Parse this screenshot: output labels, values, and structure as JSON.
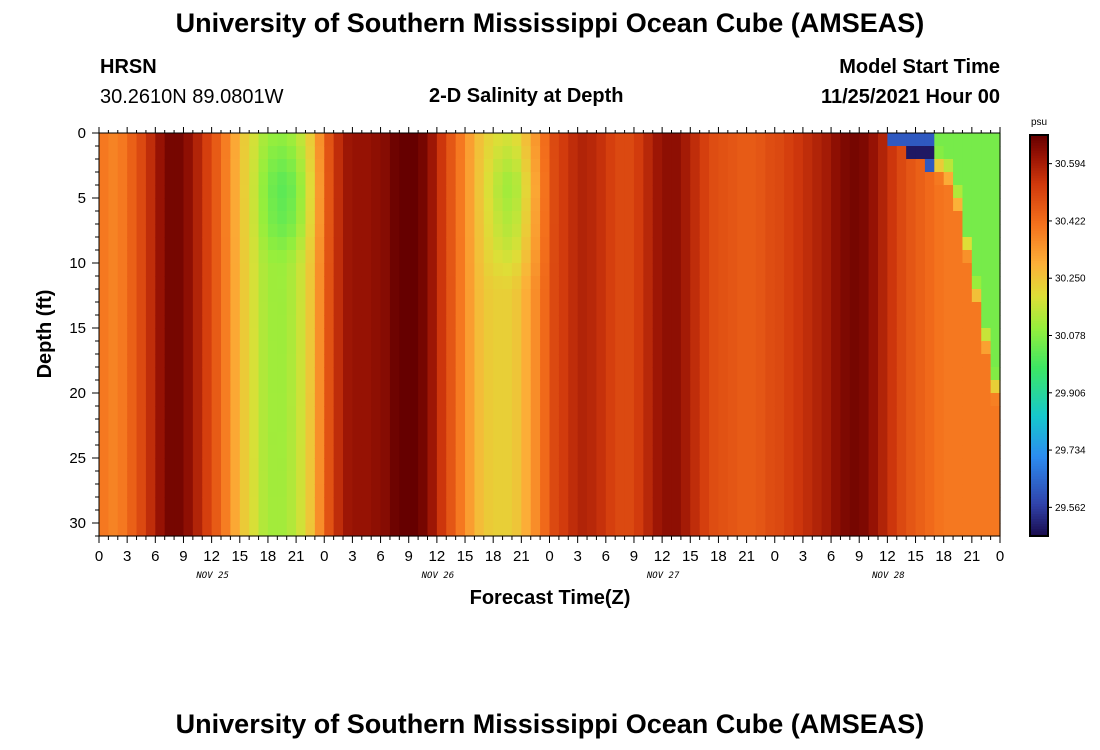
{
  "header": {
    "title": "University of Southern Mississippi Ocean Cube (AMSEAS)",
    "station": "HRSN",
    "coords": "30.2610N  89.0801W",
    "plot_title": "2-D Salinity at Depth",
    "model_start_label": "Model Start Time",
    "model_start_value": "11/25/2021 Hour 00",
    "footer_title": "University of Southern Mississippi Ocean Cube (AMSEAS)"
  },
  "chart_data": {
    "type": "heatmap",
    "title": "2-D Salinity at Depth",
    "xlabel": "Forecast Time(Z)",
    "ylabel": "Depth (ft)",
    "x_range_hours": [
      0,
      96
    ],
    "y_range_ft": [
      0,
      31
    ],
    "y_inverted": true,
    "x_ticks": [
      "0",
      "3",
      "6",
      "9",
      "12",
      "15",
      "18",
      "21",
      "0",
      "3",
      "6",
      "9",
      "12",
      "15",
      "18",
      "21",
      "0",
      "3",
      "6",
      "9",
      "12",
      "15",
      "18",
      "21",
      "0",
      "3",
      "6",
      "9",
      "12",
      "15",
      "18",
      "21",
      "0"
    ],
    "y_ticks": [
      "0",
      "5",
      "10",
      "15",
      "20",
      "25",
      "30"
    ],
    "day_labels": [
      {
        "label": "NOV 25",
        "hour": 12
      },
      {
        "label": "NOV 26",
        "hour": 36
      },
      {
        "label": "NOV 27",
        "hour": 60
      },
      {
        "label": "NOV 28",
        "hour": 84
      }
    ],
    "colorbar": {
      "unit": "psu",
      "range": [
        29.476,
        30.68
      ],
      "tick_values": [
        30.594,
        30.422,
        30.25,
        30.078,
        29.906,
        29.734,
        29.562
      ],
      "tick_labels": [
        "30.594",
        "30.422",
        "30.250",
        "30.078",
        "29.906",
        "29.734",
        "29.562"
      ]
    },
    "grid": {
      "cols": 96,
      "rows": 31,
      "col_profile_psu": [
        30.4,
        30.38,
        30.4,
        30.45,
        30.5,
        30.56,
        30.62,
        30.66,
        30.66,
        30.63,
        30.58,
        30.52,
        30.46,
        30.39,
        30.31,
        30.24,
        30.19,
        30.14,
        30.12,
        30.12,
        30.14,
        30.18,
        30.25,
        30.36,
        30.48,
        30.56,
        30.61,
        30.62,
        30.62,
        30.63,
        30.64,
        30.67,
        30.69,
        30.69,
        30.66,
        30.61,
        30.54,
        30.47,
        30.4,
        30.33,
        30.27,
        30.24,
        30.23,
        30.23,
        30.25,
        30.3,
        30.36,
        30.43,
        30.5,
        30.53,
        30.56,
        30.58,
        30.57,
        30.55,
        30.52,
        30.5,
        30.5,
        30.53,
        30.57,
        30.61,
        30.63,
        30.63,
        30.6,
        30.56,
        30.52,
        30.49,
        30.48,
        30.47,
        30.46,
        30.46,
        30.47,
        30.49,
        30.5,
        30.52,
        30.54,
        30.56,
        30.58,
        30.6,
        30.63,
        30.65,
        30.66,
        30.65,
        30.62,
        30.58,
        30.54,
        30.5,
        30.47,
        30.45,
        30.43,
        30.41,
        30.4,
        30.4,
        30.4,
        30.4,
        30.4,
        30.4
      ],
      "freshwater_columns": [
        {
          "center_hour": 20,
          "width_hours": 2.8,
          "depth_strength_psu": [
            {
              "depth": 0,
              "delta": 0.02
            },
            {
              "depth": 4,
              "delta": 0.1
            },
            {
              "depth": 7,
              "delta": 0.08
            },
            {
              "depth": 10,
              "delta": 0.01
            },
            {
              "depth": 31,
              "delta": 0.0
            }
          ]
        },
        {
          "center_hour": 44,
          "width_hours": 2.6,
          "depth_strength_psu": [
            {
              "depth": 0,
              "delta": 0.04
            },
            {
              "depth": 4,
              "delta": 0.12
            },
            {
              "depth": 8,
              "delta": 0.08
            },
            {
              "depth": 12,
              "delta": 0.0
            },
            {
              "depth": 31,
              "delta": 0.0
            }
          ]
        }
      ],
      "surface_plume": {
        "start_hour": 83,
        "end_hour": 96,
        "surface_psu": 30.06,
        "min_psu": 29.5,
        "min_hours": [
          84.5,
          89
        ],
        "min_depth_ft": 1.5
      }
    }
  }
}
